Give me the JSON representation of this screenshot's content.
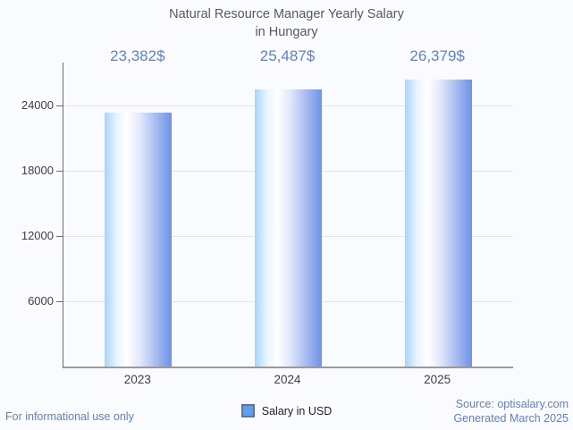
{
  "header": {
    "title_lines": [
      "Natural Resource Manager Yearly Salary",
      "in Hungary"
    ]
  },
  "chart_data": {
    "type": "bar",
    "title": "Natural Resource Manager Yearly Salary in Hungary",
    "categories": [
      "2023",
      "2024",
      "2025"
    ],
    "values": [
      23382,
      25487,
      26379
    ],
    "value_labels": [
      "23,382$",
      "25,487$",
      "26,379$"
    ],
    "series": [
      {
        "name": "Salary in USD",
        "values": [
          23382,
          25487,
          26379
        ]
      }
    ],
    "xlabel": "",
    "ylabel": "",
    "ylim": [
      0,
      27950
    ],
    "yticks": [
      6000,
      12000,
      18000,
      24000
    ],
    "grid": "horizontal",
    "legend_position": "bottom"
  },
  "legend": {
    "label": "Salary in USD"
  },
  "footer": {
    "left_note": "For informational use only",
    "source": "Source: optisalary.com",
    "generated": "Generated March 2025"
  },
  "colors": {
    "background": "#fafbfe",
    "title_text": "#58595b",
    "axis_text": "#3f3f3f",
    "value_label_text": "#5b81d6",
    "footer_text": "#5c7fd6",
    "axis_line": "#6f6f6f",
    "baseline": "#9a9a9a",
    "gridline": "#e4e4e6",
    "legend_swatch_fill": "#5f9ff0",
    "legend_swatch_border": "#6b7280",
    "bar_gradient": [
      "#a5d5fa 0%",
      "#e8f4fe 18%",
      "#ffffff 33%",
      "#e3e9fa 52%",
      "#a9bdf0 76%",
      "#6b93e8 100%"
    ]
  }
}
